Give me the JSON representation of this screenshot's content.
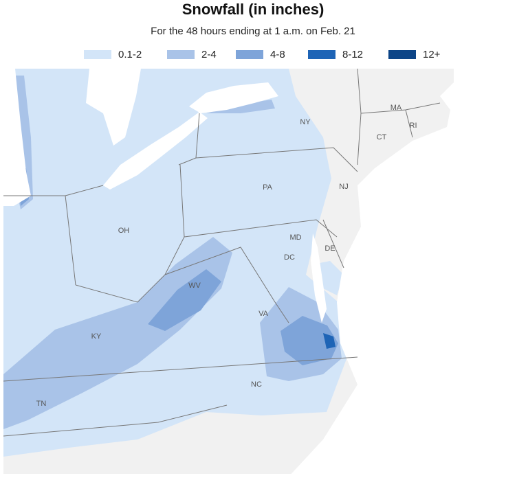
{
  "header": {
    "title": "Snowfall (in inches)",
    "subtitle": "For the 48 hours ending at 1 a.m. on Feb. 21"
  },
  "legend": [
    {
      "label": "0.1-2",
      "color": "#d3e5f8"
    },
    {
      "label": "2-4",
      "color": "#a9c3e8"
    },
    {
      "label": "4-8",
      "color": "#7ea4d9"
    },
    {
      "label": "8-12",
      "color": "#1e64b6"
    },
    {
      "label": "12+",
      "color": "#0d4587"
    }
  ],
  "map": {
    "state_labels": [
      "MA",
      "RI",
      "CT",
      "NY",
      "NJ",
      "PA",
      "MD",
      "DE",
      "DC",
      "OH",
      "WV",
      "VA",
      "KY",
      "TN",
      "NC"
    ]
  }
}
